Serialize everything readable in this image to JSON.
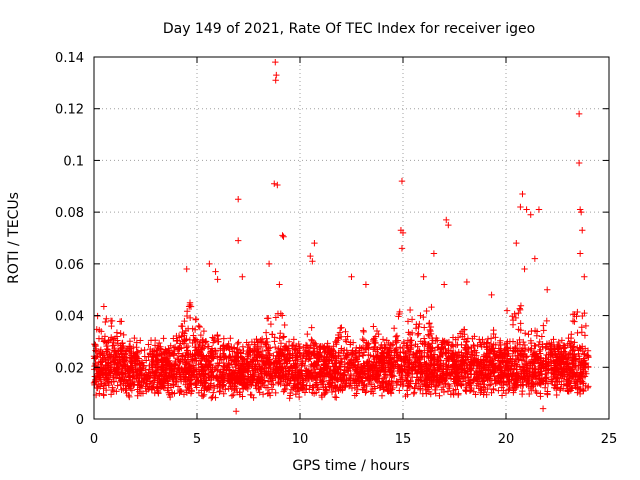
{
  "chart_data": {
    "type": "scatter",
    "title": "Day 149 of 2021, Rate Of TEC Index for receiver igeo",
    "xlabel": "GPS time / hours",
    "ylabel": "ROTI / TECUs",
    "xlim": [
      0,
      25
    ],
    "ylim": [
      0,
      0.14
    ],
    "xticks": [
      0,
      5,
      10,
      15,
      20,
      25
    ],
    "xtick_labels": [
      "0",
      "5",
      "10",
      "15",
      "20",
      "25"
    ],
    "yticks": [
      0,
      0.02,
      0.04,
      0.06,
      0.08,
      0.1,
      0.12,
      0.14
    ],
    "ytick_labels": [
      "0",
      "0.02",
      "0.04",
      "0.06",
      "0.08",
      "0.1",
      "0.12",
      "0.14"
    ],
    "grid": true,
    "marker": "+",
    "color": "#ff0000",
    "series": [
      {
        "name": "ROTI",
        "x_range": [
          0,
          24
        ],
        "bulk_range": [
          0.005,
          0.035
        ],
        "points": [
          [
            8.8,
            0.138
          ],
          [
            8.85,
            0.133
          ],
          [
            8.82,
            0.131
          ],
          [
            8.75,
            0.091
          ],
          [
            8.9,
            0.0905
          ],
          [
            9.15,
            0.071
          ],
          [
            9.2,
            0.0705
          ],
          [
            7.0,
            0.085
          ],
          [
            7.0,
            0.069
          ],
          [
            10.7,
            0.068
          ],
          [
            10.5,
            0.063
          ],
          [
            10.6,
            0.061
          ],
          [
            14.95,
            0.092
          ],
          [
            14.9,
            0.073
          ],
          [
            15.0,
            0.072
          ],
          [
            14.95,
            0.066
          ],
          [
            17.1,
            0.077
          ],
          [
            17.2,
            0.075
          ],
          [
            16.5,
            0.064
          ],
          [
            20.8,
            0.087
          ],
          [
            20.7,
            0.082
          ],
          [
            21.0,
            0.081
          ],
          [
            21.6,
            0.081
          ],
          [
            21.2,
            0.079
          ],
          [
            20.5,
            0.068
          ],
          [
            21.4,
            0.062
          ],
          [
            20.9,
            0.058
          ],
          [
            23.55,
            0.118
          ],
          [
            23.55,
            0.099
          ],
          [
            23.6,
            0.081
          ],
          [
            23.65,
            0.08
          ],
          [
            23.7,
            0.073
          ],
          [
            23.6,
            0.064
          ],
          [
            23.8,
            0.055
          ],
          [
            4.5,
            0.058
          ],
          [
            5.6,
            0.06
          ],
          [
            5.9,
            0.057
          ],
          [
            6.0,
            0.054
          ],
          [
            7.2,
            0.055
          ],
          [
            8.5,
            0.06
          ],
          [
            9.0,
            0.052
          ],
          [
            12.5,
            0.055
          ],
          [
            13.2,
            0.052
          ],
          [
            16.0,
            0.055
          ],
          [
            17.0,
            0.052
          ],
          [
            18.1,
            0.053
          ],
          [
            19.3,
            0.048
          ],
          [
            22.0,
            0.05
          ],
          [
            6.9,
            0.003
          ],
          [
            21.8,
            0.004
          ]
        ]
      }
    ]
  }
}
